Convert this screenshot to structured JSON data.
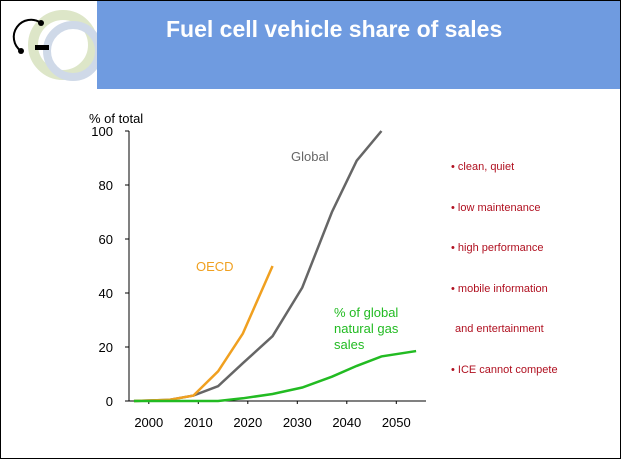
{
  "header": {
    "title": "Fuel cell vehicle share of sales"
  },
  "chart_data": {
    "type": "line",
    "ylabel": "% of total",
    "xlim": [
      1996,
      2056
    ],
    "xticks": [
      2000,
      2010,
      2020,
      2030,
      2040,
      2050
    ],
    "ylim": [
      0,
      100
    ],
    "yticks": [
      0,
      20,
      40,
      60,
      80,
      100
    ],
    "series": [
      {
        "name": "Global",
        "color": "#666666",
        "x": [
          1997,
          2004,
          2009,
          2014,
          2019,
          2025,
          2031,
          2037,
          2042,
          2047
        ],
        "values": [
          0,
          0.4,
          2,
          5.5,
          14,
          24,
          42,
          70,
          89,
          100
        ]
      },
      {
        "name": "OECD",
        "color": "#f0a020",
        "x": [
          1997,
          2004,
          2009,
          2014,
          2019,
          2025
        ],
        "values": [
          0,
          0.4,
          2,
          11,
          25,
          50
        ]
      },
      {
        "name": "% of global natural gas sales",
        "color": "#22bb22",
        "x": [
          1997,
          2014,
          2019,
          2025,
          2031,
          2037,
          2042,
          2047,
          2054
        ],
        "values": [
          0,
          0,
          1,
          2.6,
          5,
          9,
          13,
          16.5,
          18.5
        ]
      }
    ]
  },
  "bullets": [
    "• clean, quiet",
    "• low maintenance",
    "• high performance",
    "• mobile information",
    "and entertainment",
    "• ICE cannot compete"
  ]
}
